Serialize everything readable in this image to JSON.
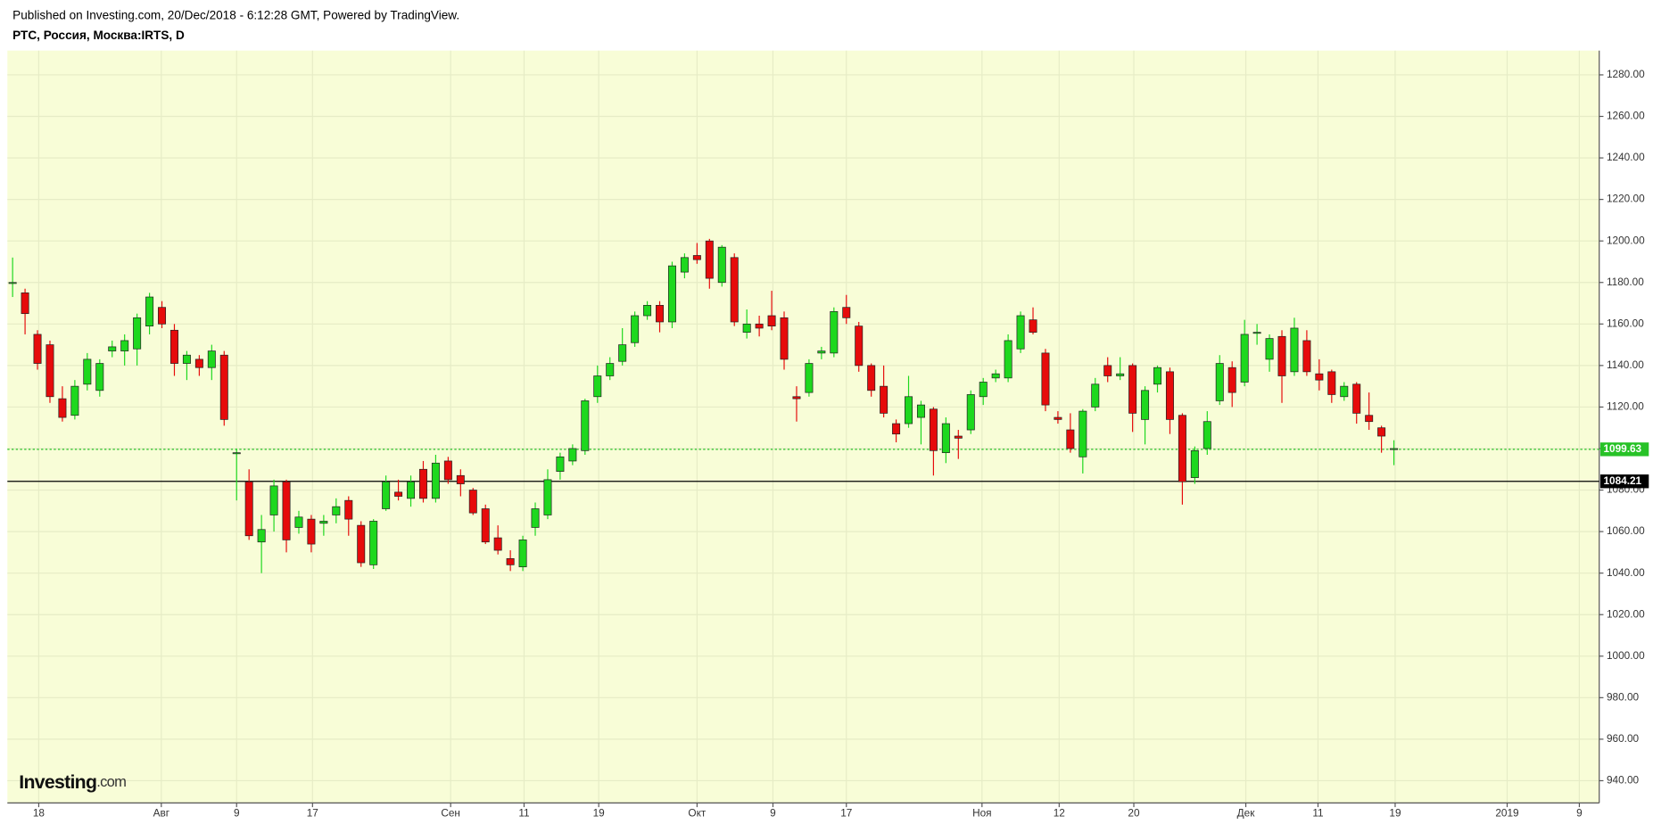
{
  "header": {
    "published": "Published on Investing.com, 20/Dec/2018 - 6:12:28 GMT, Powered by TradingView.",
    "symbol": "РТС, Россия, Москва:IRTS, D"
  },
  "watermark": {
    "brand": "Investing",
    "suffix": ".com"
  },
  "chart_data": {
    "type": "candlestick",
    "up_color": "#1ed81e",
    "down_color": "#e60b0b",
    "background": "#f8fdd7",
    "open": [
      1180,
      1175,
      1155,
      1150,
      1124,
      1116,
      1131,
      1128,
      1147,
      1147,
      1148,
      1159,
      1168,
      1157,
      1141,
      1143,
      1139,
      1145,
      1098,
      1084,
      1055,
      1068,
      1084,
      1062,
      1066,
      1064,
      1068,
      1075,
      1063,
      1044,
      1071,
      1079,
      1076,
      1090,
      1076,
      1094,
      1087,
      1080,
      1071,
      1057,
      1047,
      1043,
      1062,
      1068,
      1089,
      1094,
      1099,
      1125,
      1135,
      1142,
      1151,
      1164,
      1169,
      1161,
      1185,
      1193,
      1200,
      1180,
      1192,
      1156,
      1160,
      1164,
      1163,
      1125,
      1127,
      1146,
      1146,
      1168,
      1159,
      1140,
      1130,
      1112,
      1112,
      1115,
      1119,
      1098,
      1106,
      1109,
      1125,
      1134,
      1134,
      1148,
      1162,
      1146,
      1115,
      1109,
      1096,
      1120,
      1140,
      1135,
      1140,
      1114,
      1131,
      1137,
      1116,
      1086,
      1100,
      1123,
      1139,
      1132,
      1156,
      1143,
      1154,
      1137,
      1152,
      1136,
      1137,
      1125,
      1131,
      1116,
      1110,
      1100
    ],
    "high": [
      1192,
      1177,
      1157,
      1152,
      1130,
      1133,
      1146,
      1143,
      1152,
      1155,
      1165,
      1175,
      1171,
      1160,
      1147,
      1145,
      1150,
      1147,
      1100,
      1090,
      1068,
      1085,
      1085,
      1070,
      1068,
      1068,
      1076,
      1077,
      1065,
      1066,
      1087,
      1085,
      1087,
      1094,
      1097,
      1096,
      1090,
      1081,
      1073,
      1063,
      1051,
      1058,
      1074,
      1090,
      1098,
      1102,
      1124,
      1140,
      1144,
      1158,
      1166,
      1171,
      1171,
      1190,
      1194,
      1199,
      1201,
      1198,
      1194,
      1167,
      1164,
      1176,
      1166,
      1130,
      1143,
      1149,
      1168,
      1174,
      1161,
      1141,
      1140,
      1114,
      1135,
      1123,
      1120,
      1115,
      1109,
      1128,
      1134,
      1138,
      1155,
      1166,
      1168,
      1148,
      1118,
      1117,
      1119,
      1134,
      1144,
      1144,
      1141,
      1130,
      1140,
      1139,
      1117,
      1101,
      1118,
      1145,
      1142,
      1162,
      1160,
      1155,
      1157,
      1163,
      1157,
      1143,
      1138,
      1132,
      1132,
      1127,
      1111,
      1104
    ],
    "low": [
      1173,
      1155,
      1138,
      1122,
      1113,
      1114,
      1128,
      1125,
      1144,
      1140,
      1140,
      1155,
      1158,
      1135,
      1133,
      1135,
      1133,
      1111,
      1075,
      1056,
      1040,
      1060,
      1050,
      1059,
      1050,
      1058,
      1064,
      1058,
      1043,
      1042,
      1070,
      1075,
      1072,
      1074,
      1074,
      1083,
      1077,
      1068,
      1054,
      1049,
      1041,
      1041,
      1058,
      1066,
      1085,
      1092,
      1097,
      1122,
      1133,
      1140,
      1149,
      1162,
      1156,
      1158,
      1182,
      1189,
      1177,
      1178,
      1159,
      1153,
      1154,
      1157,
      1138,
      1113,
      1125,
      1143,
      1144,
      1160,
      1137,
      1125,
      1115,
      1103,
      1110,
      1102,
      1087,
      1093,
      1095,
      1107,
      1121,
      1132,
      1132,
      1146,
      1155,
      1118,
      1112,
      1098,
      1088,
      1118,
      1132,
      1133,
      1108,
      1102,
      1127,
      1107,
      1073,
      1083,
      1097,
      1121,
      1120,
      1130,
      1150,
      1137,
      1122,
      1135,
      1135,
      1128,
      1122,
      1123,
      1112,
      1109,
      1098,
      1092
    ],
    "close": [
      1180,
      1165,
      1141,
      1125,
      1115,
      1130,
      1143,
      1141,
      1149,
      1152,
      1163,
      1173,
      1160,
      1141,
      1145,
      1139,
      1147,
      1114,
      1098,
      1058,
      1061,
      1082,
      1056,
      1067,
      1054,
      1065,
      1072,
      1066,
      1045,
      1065,
      1084,
      1077,
      1084,
      1076,
      1093,
      1085,
      1083,
      1069,
      1055,
      1051,
      1044,
      1056,
      1071,
      1085,
      1096,
      1100,
      1123,
      1135,
      1141,
      1150,
      1164,
      1169,
      1161,
      1188,
      1192,
      1191,
      1182,
      1197,
      1161,
      1160,
      1158,
      1159,
      1143,
      1124,
      1141,
      1147,
      1166,
      1163,
      1140,
      1128,
      1117,
      1107,
      1125,
      1121,
      1099,
      1112,
      1105,
      1126,
      1132,
      1136,
      1152,
      1164,
      1156,
      1121,
      1114,
      1100,
      1118,
      1131,
      1135,
      1136,
      1117,
      1128,
      1139,
      1114,
      1084,
      1099,
      1113,
      1141,
      1127,
      1155,
      1156,
      1153,
      1135,
      1158,
      1137,
      1133,
      1126,
      1130,
      1117,
      1113,
      1106,
      1100
    ],
    "xlim": [
      -0.42,
      127.5
    ],
    "xticks": [
      {
        "value": 2.1,
        "label": "18"
      },
      {
        "value": 11.95,
        "label": "Авг"
      },
      {
        "value": 18.0,
        "label": "9"
      },
      {
        "value": 24.1,
        "label": "17"
      },
      {
        "value": 35.2,
        "label": "Сен"
      },
      {
        "value": 41.1,
        "label": "11"
      },
      {
        "value": 47.1,
        "label": "19"
      },
      {
        "value": 55.0,
        "label": "Окт"
      },
      {
        "value": 61.1,
        "label": "9"
      },
      {
        "value": 67.0,
        "label": "17"
      },
      {
        "value": 77.9,
        "label": "Ноя"
      },
      {
        "value": 84.1,
        "label": "12"
      },
      {
        "value": 90.1,
        "label": "20"
      },
      {
        "value": 99.1,
        "label": "Дек"
      },
      {
        "value": 104.9,
        "label": "11"
      },
      {
        "value": 111.1,
        "label": "19"
      },
      {
        "value": 120.1,
        "label": "2019"
      },
      {
        "value": 125.9,
        "label": "9"
      }
    ],
    "ylim": [
      929.3,
      1291.7
    ],
    "yticks": [
      {
        "value": 940,
        "label": "940.00"
      },
      {
        "value": 960,
        "label": "960.00"
      },
      {
        "value": 980,
        "label": "980.00"
      },
      {
        "value": 1000,
        "label": "1000.00"
      },
      {
        "value": 1020,
        "label": "1020.00"
      },
      {
        "value": 1040,
        "label": "1040.00"
      },
      {
        "value": 1060,
        "label": "1060.00"
      },
      {
        "value": 1080,
        "label": "1080.00"
      },
      {
        "value": 1100,
        "label": "1100.00"
      },
      {
        "value": 1120,
        "label": "1120.00"
      },
      {
        "value": 1140,
        "label": "1140.00"
      },
      {
        "value": 1160,
        "label": "1160.00"
      },
      {
        "value": 1180,
        "label": "1180.00"
      },
      {
        "value": 1200,
        "label": "1200.00"
      },
      {
        "value": 1220,
        "label": "1220.00"
      },
      {
        "value": 1240,
        "label": "1240.00"
      },
      {
        "value": 1260,
        "label": "1260.00"
      },
      {
        "value": 1280,
        "label": "1280.00"
      }
    ],
    "grid": true,
    "price_lines": [
      {
        "value": 1099.63,
        "color": "#27c227",
        "style": "dotted"
      },
      {
        "value": 1084.21,
        "color": "#000000",
        "style": "solid"
      }
    ]
  }
}
